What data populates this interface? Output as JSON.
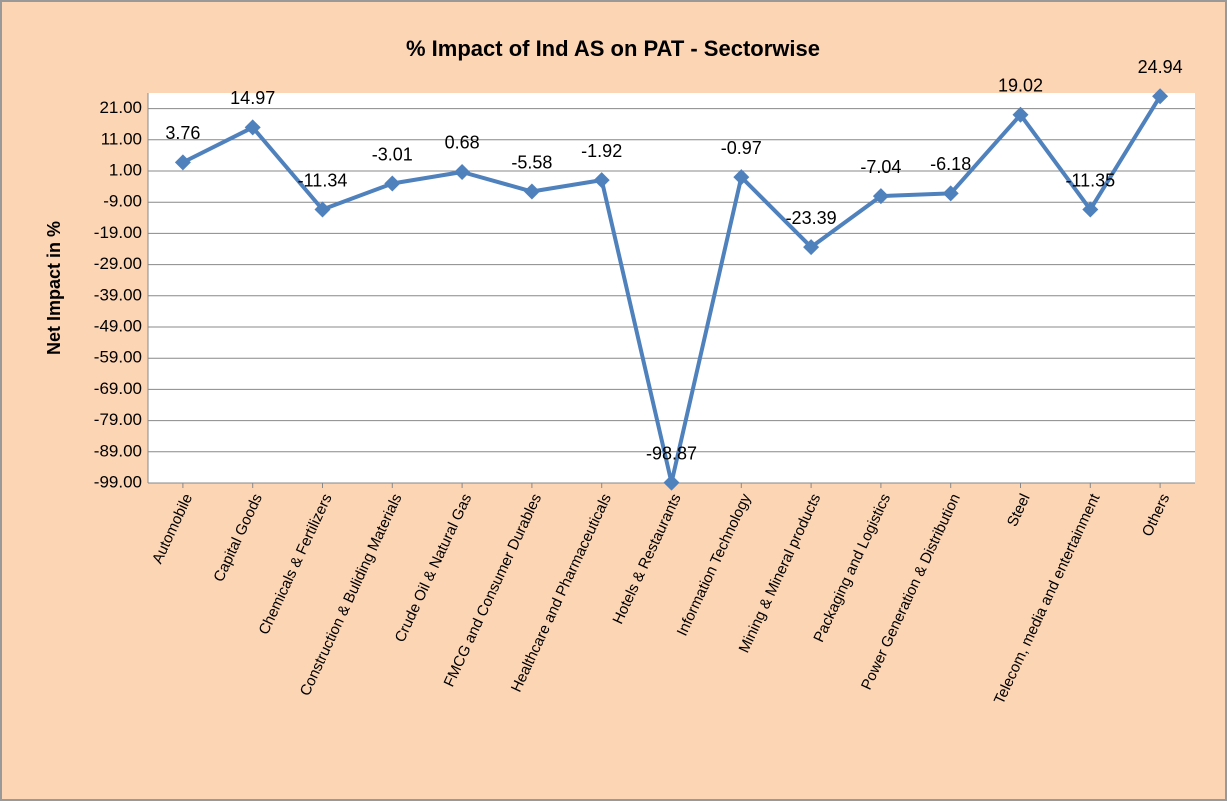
{
  "chart_data": {
    "type": "line",
    "title": "% Impact of Ind AS on PAT - Sectorwise",
    "y_label": "Net Impact in %",
    "categories": [
      "Automobile",
      "Capital Goods",
      "Chemicals & Fertilizers",
      "Construction & Buliding Materials",
      "Crude Oil & Natural Gas",
      "FMCG and Consumer Durables",
      "Healthcare and Pharmaceuticals",
      "Hotels & Restaurants",
      "Information Technology",
      "Mining & Mineral products",
      "Packaging and Logistics",
      "Power Generation & Distribution",
      "Steel",
      "Telecom, media and entertainment",
      "Others"
    ],
    "values": [
      3.76,
      14.97,
      -11.34,
      -3.01,
      0.68,
      -5.58,
      -1.92,
      -98.87,
      -0.97,
      -23.39,
      -7.04,
      -6.18,
      19.02,
      -11.35,
      24.94
    ],
    "color": "#4f81bd",
    "ylim": [
      -99,
      26
    ],
    "yticks": [
      {
        "value": -99,
        "label": "-99.00"
      },
      {
        "value": -89,
        "label": "-89.00"
      },
      {
        "value": -79,
        "label": "-79.00"
      },
      {
        "value": -69,
        "label": "-69.00"
      },
      {
        "value": -59,
        "label": "-59.00"
      },
      {
        "value": -49,
        "label": "-49.00"
      },
      {
        "value": -39,
        "label": "-39.00"
      },
      {
        "value": -29,
        "label": "-29.00"
      },
      {
        "value": -19,
        "label": "-19.00"
      },
      {
        "value": -9,
        "label": "-9.00"
      },
      {
        "value": 1,
        "label": "1.00"
      },
      {
        "value": 11,
        "label": "11.00"
      },
      {
        "value": 21,
        "label": "21.00"
      }
    ],
    "grid": true
  }
}
